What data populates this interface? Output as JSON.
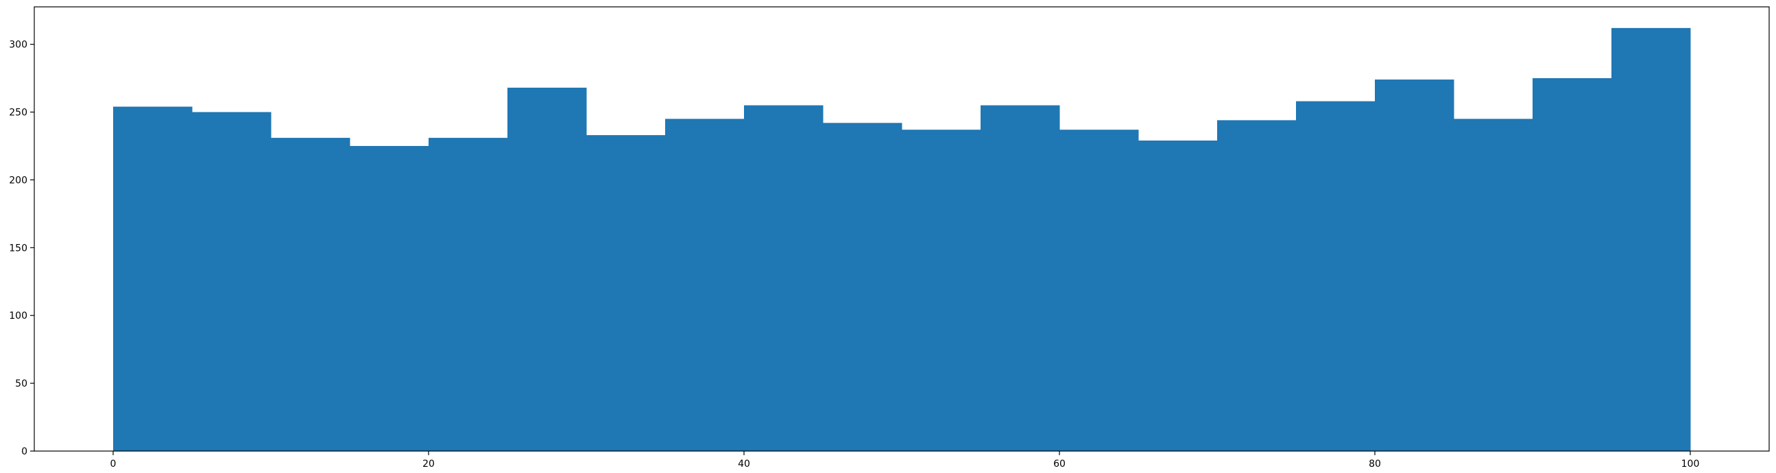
{
  "chart_data": {
    "type": "bar",
    "histogram": true,
    "bin_edges": [
      0,
      5,
      10,
      15,
      20,
      25,
      30,
      35,
      40,
      45,
      50,
      55,
      60,
      65,
      70,
      75,
      80,
      85,
      90,
      95,
      100
    ],
    "values": [
      254,
      250,
      231,
      225,
      231,
      268,
      233,
      245,
      255,
      242,
      237,
      255,
      237,
      229,
      244,
      258,
      274,
      245,
      275,
      312
    ],
    "title": "",
    "xlabel": "",
    "ylabel": "",
    "xlim": [
      -5,
      105
    ],
    "ylim": [
      0,
      327.6
    ],
    "xticks": [
      0,
      20,
      40,
      60,
      80,
      100
    ],
    "yticks": [
      0,
      50,
      100,
      150,
      200,
      250,
      300
    ],
    "grid": false,
    "bar_color": "#1f77b4"
  }
}
